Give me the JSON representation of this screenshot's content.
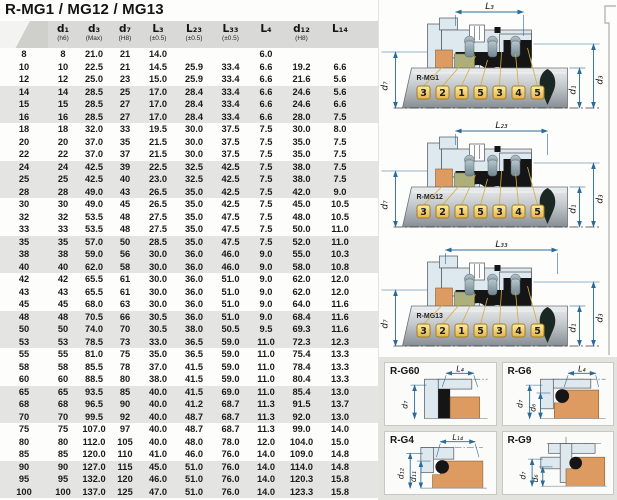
{
  "title": "R-MG1 / MG12 / MG13",
  "colors": {
    "dimension_blue": "#2a6a98",
    "seat_orange": "#dd9b62",
    "ring_olive": "#abaf7d",
    "tag_yellow": "#eec355",
    "elastomer_black": "#151515",
    "band_grey": "#e4e4e2",
    "header_grey": "#d9d9d8"
  },
  "table": {
    "columns": [
      {
        "label": "",
        "sub": ""
      },
      {
        "label": "d₁",
        "sub": "(h6)"
      },
      {
        "label": "d₃",
        "sub": "(Max)"
      },
      {
        "label": "d₇",
        "sub": "(H8)"
      },
      {
        "label": "L₃",
        "sub": "(±0.5)"
      },
      {
        "label": "L₂₃",
        "sub": "(±0.5)"
      },
      {
        "label": "L₃₃",
        "sub": "(±0.5)"
      },
      {
        "label": "L₄",
        "sub": ""
      },
      {
        "label": "d₁₂",
        "sub": "(H8)"
      },
      {
        "label": "L₁₄",
        "sub": ""
      }
    ],
    "rows": [
      [
        "8",
        "8",
        "21.0",
        "21",
        "14.0",
        "",
        "",
        "6.0",
        "",
        ""
      ],
      [
        "10",
        "10",
        "22.5",
        "21",
        "14.5",
        "25.9",
        "33.4",
        "6.6",
        "19.2",
        "6.6"
      ],
      [
        "12",
        "12",
        "25.0",
        "23",
        "15.0",
        "25.9",
        "33.4",
        "6.6",
        "21.6",
        "5.6"
      ],
      [
        "14",
        "14",
        "28.5",
        "25",
        "17.0",
        "28.4",
        "33.4",
        "6.6",
        "24.6",
        "5.6"
      ],
      [
        "15",
        "15",
        "28.5",
        "27",
        "17.0",
        "28.4",
        "33.4",
        "6.6",
        "24.6",
        "6.6"
      ],
      [
        "16",
        "16",
        "28.5",
        "27",
        "17.0",
        "28.4",
        "33.4",
        "6.6",
        "28.0",
        "7.5"
      ],
      [
        "18",
        "18",
        "32.0",
        "33",
        "19.5",
        "30.0",
        "37.5",
        "7.5",
        "30.0",
        "8.0"
      ],
      [
        "20",
        "20",
        "37.0",
        "35",
        "21.5",
        "30.0",
        "37.5",
        "7.5",
        "35.0",
        "7.5"
      ],
      [
        "22",
        "22",
        "37.0",
        "37",
        "21.5",
        "30.0",
        "37.5",
        "7.5",
        "35.0",
        "7.5"
      ],
      [
        "24",
        "24",
        "42.5",
        "39",
        "22.5",
        "32.5",
        "42.5",
        "7.5",
        "38.0",
        "7.5"
      ],
      [
        "25",
        "25",
        "42.5",
        "40",
        "23.0",
        "32.5",
        "42.5",
        "7.5",
        "38.0",
        "7.5"
      ],
      [
        "28",
        "28",
        "49.0",
        "43",
        "26.5",
        "35.0",
        "42.5",
        "7.5",
        "42.0",
        "9.0"
      ],
      [
        "30",
        "30",
        "49.0",
        "45",
        "26.5",
        "35.0",
        "42.5",
        "7.5",
        "45.0",
        "10.5"
      ],
      [
        "32",
        "32",
        "53.5",
        "48",
        "27.5",
        "35.0",
        "47.5",
        "7.5",
        "48.0",
        "10.5"
      ],
      [
        "33",
        "33",
        "53.5",
        "48",
        "27.5",
        "35.0",
        "47.5",
        "7.5",
        "50.0",
        "11.0"
      ],
      [
        "35",
        "35",
        "57.0",
        "50",
        "28.5",
        "35.0",
        "47.5",
        "7.5",
        "52.0",
        "11.0"
      ],
      [
        "38",
        "38",
        "59.0",
        "56",
        "30.0",
        "36.0",
        "46.0",
        "9.0",
        "55.0",
        "10.3"
      ],
      [
        "40",
        "40",
        "62.0",
        "58",
        "30.0",
        "36.0",
        "46.0",
        "9.0",
        "58.0",
        "10.8"
      ],
      [
        "42",
        "42",
        "65.5",
        "61",
        "30.0",
        "36.0",
        "51.0",
        "9.0",
        "62.0",
        "12.0"
      ],
      [
        "43",
        "43",
        "65.5",
        "61",
        "30.0",
        "36.0",
        "51.0",
        "9.0",
        "62.0",
        "12.0"
      ],
      [
        "45",
        "45",
        "68.0",
        "63",
        "30.0",
        "36.0",
        "51.0",
        "9.0",
        "64.0",
        "11.6"
      ],
      [
        "48",
        "48",
        "70.5",
        "66",
        "30.5",
        "36.0",
        "51.0",
        "9.0",
        "68.4",
        "11.6"
      ],
      [
        "50",
        "50",
        "74.0",
        "70",
        "30.5",
        "38.0",
        "50.5",
        "9.5",
        "69.3",
        "11.6"
      ],
      [
        "53",
        "53",
        "78.5",
        "73",
        "33.0",
        "36.5",
        "59.0",
        "11.0",
        "72.3",
        "12.3"
      ],
      [
        "55",
        "55",
        "81.0",
        "75",
        "35.0",
        "36.5",
        "59.0",
        "11.0",
        "75.4",
        "13.3"
      ],
      [
        "58",
        "58",
        "85.5",
        "78",
        "37.0",
        "41.5",
        "59.0",
        "11.0",
        "78.4",
        "13.3"
      ],
      [
        "60",
        "60",
        "88.5",
        "80",
        "38.0",
        "41.5",
        "59.0",
        "11.0",
        "80.4",
        "13.3"
      ],
      [
        "65",
        "65",
        "93.5",
        "85",
        "40.0",
        "41.5",
        "69.0",
        "11.0",
        "85.4",
        "13.0"
      ],
      [
        "68",
        "68",
        "96.5",
        "90",
        "40.0",
        "41.2",
        "68.7",
        "11.3",
        "91.5",
        "13.7"
      ],
      [
        "70",
        "70",
        "99.5",
        "92",
        "40.0",
        "48.7",
        "68.7",
        "11.3",
        "92.0",
        "13.0"
      ],
      [
        "75",
        "75",
        "107.0",
        "97",
        "40.0",
        "48.7",
        "68.7",
        "11.3",
        "99.0",
        "14.0"
      ],
      [
        "80",
        "80",
        "112.0",
        "105",
        "40.0",
        "48.0",
        "78.0",
        "12.0",
        "104.0",
        "15.0"
      ],
      [
        "85",
        "85",
        "120.0",
        "110",
        "41.0",
        "46.0",
        "76.0",
        "14.0",
        "109.0",
        "14.8"
      ],
      [
        "90",
        "90",
        "127.0",
        "115",
        "45.0",
        "51.0",
        "76.0",
        "14.0",
        "114.0",
        "14.8"
      ],
      [
        "95",
        "95",
        "132.0",
        "120",
        "46.0",
        "51.0",
        "76.0",
        "14.0",
        "120.3",
        "15.8"
      ],
      [
        "100",
        "100",
        "137.0",
        "125",
        "47.0",
        "51.0",
        "76.0",
        "14.0",
        "123.3",
        "15.8"
      ]
    ]
  },
  "diagrams": {
    "part_numbers": [
      "3",
      "2",
      "1",
      "5",
      "3",
      "4",
      "5"
    ],
    "items": [
      {
        "name": "R-MG1",
        "length_label": "L₃",
        "left_dim": "d₇",
        "right_dim1": "d₁",
        "right_dim2": "d₃"
      },
      {
        "name": "R-MG12",
        "length_label": "L₂₃",
        "left_dim": "d₇",
        "right_dim1": "d₁",
        "right_dim2": "d₃"
      },
      {
        "name": "R-MG13",
        "length_label": "L₃₃",
        "left_dim": "d₇",
        "right_dim1": "d₁",
        "right_dim2": "d₃"
      }
    ]
  },
  "small_diagrams": {
    "items": [
      {
        "name": "R-G60",
        "dim_top": "L₄",
        "dim_left1": "d₇",
        "dim_left2": ""
      },
      {
        "name": "R-G6",
        "dim_top": "L₄",
        "dim_left1": "d₇",
        "dim_left2": "d₆"
      },
      {
        "name": "R-G4",
        "dim_top": "L₁₄",
        "dim_left1": "d₁₂",
        "dim_left2": "d₁₁"
      },
      {
        "name": "R-G9",
        "dim_top": "",
        "dim_left1": "d₇",
        "dim_left2": "d₆"
      }
    ]
  }
}
